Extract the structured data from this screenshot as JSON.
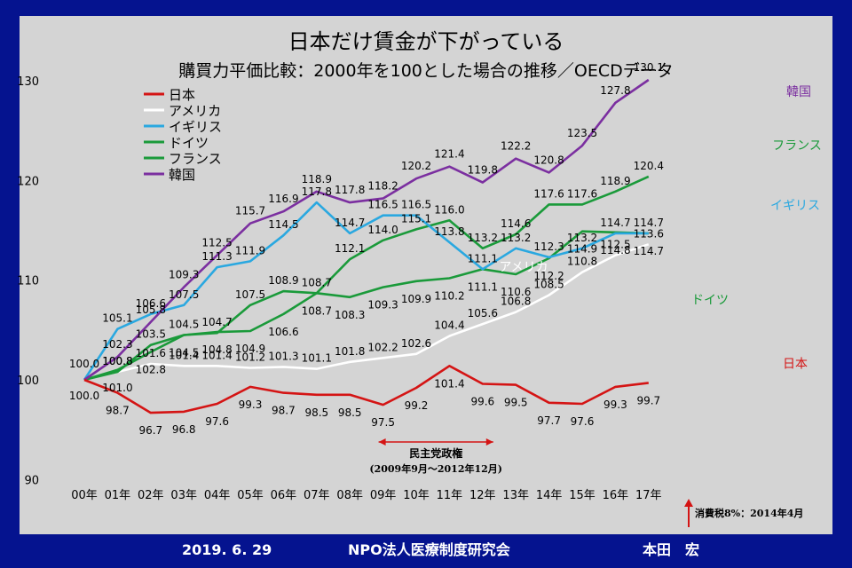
{
  "footer": {
    "date": "2019. 6. 29",
    "org": "NPO法人医療制度研究会",
    "author": "本田　宏"
  },
  "chart_data": {
    "type": "line",
    "title": "日本だけ賃金が下がっている",
    "subtitle": "購買力平価比較：2000年を100とした場合の推移／OECDデータ",
    "categories": [
      "00年",
      "01年",
      "02年",
      "03年",
      "04年",
      "05年",
      "06年",
      "07年",
      "08年",
      "09年",
      "10年",
      "11年",
      "12年",
      "13年",
      "14年",
      "15年",
      "16年",
      "17年"
    ],
    "ylim": [
      90,
      130
    ],
    "yticks": [
      90,
      100,
      110,
      120,
      130
    ],
    "grid": false,
    "legend_position": "top-left",
    "series": [
      {
        "name": "日本",
        "color": "#d41414",
        "end_label": "日本",
        "values": [
          100,
          98.7,
          96.7,
          96.8,
          97.6,
          99.3,
          98.7,
          98.5,
          98.5,
          97.5,
          99.2,
          101.4,
          99.6,
          99.5,
          97.7,
          97.6,
          99.3,
          99.7
        ],
        "labels": [
          "100.0",
          "98.7",
          "96.7",
          "96.8",
          "97.6",
          "99.3",
          "98.7",
          "98.5",
          "98.5",
          "97.5",
          "99.2",
          "101.4",
          "99.6",
          "99.5",
          "97.7",
          "97.6",
          "99.3",
          "99.7"
        ]
      },
      {
        "name": "アメリカ",
        "color": "#ffffff",
        "end_label": "アメリカ",
        "values": [
          100,
          100.8,
          101.6,
          101.4,
          101.4,
          101.2,
          101.3,
          101.1,
          101.8,
          102.2,
          102.6,
          104.4,
          105.6,
          106.8,
          108.5,
          110.8,
          112.5,
          113.6
        ],
        "labels": [
          "100.0",
          "100.8",
          "101.6",
          "101.4",
          "101.4",
          "101.2",
          "101.3",
          "101.1",
          "101.8",
          "102.2",
          "102.6",
          "104.4",
          "105.6",
          "106.8",
          "108.5",
          "110.8",
          "112.5",
          "113.6"
        ]
      },
      {
        "name": "イギリス",
        "color": "#2aa8e0",
        "end_label": "イギリス",
        "values": [
          100,
          105.1,
          106.6,
          107.5,
          111.3,
          111.9,
          114.5,
          117.8,
          114.7,
          116.5,
          116.5,
          113.8,
          111.1,
          113.2,
          112.3,
          113.2,
          114.7,
          114.7
        ],
        "labels": [
          "100.0",
          "105.1",
          "106.6",
          "107.5",
          "111.3",
          "111.9",
          "114.5",
          "117.8",
          "114.7",
          "116.5",
          "116.5",
          "113.8",
          "111.1",
          "113.2",
          "112.3",
          "113.2",
          "114.7",
          "114.7"
        ]
      },
      {
        "name": "ドイツ",
        "color": "#1a9a3a",
        "end_label": "ドイツ",
        "values": [
          100,
          101,
          102.8,
          104.5,
          104.8,
          104.9,
          106.6,
          108.7,
          108.3,
          109.3,
          109.9,
          110.2,
          111.1,
          110.6,
          112.2,
          114.9,
          114.8,
          114.7
        ],
        "labels": [
          "100.0",
          "101.0",
          "102.8",
          "104.5",
          "104.8",
          "104.9",
          "106.6",
          "108.7",
          "108.3",
          "109.3",
          "109.9",
          "110.2",
          "111.1",
          "110.6",
          "112.2",
          "114.9",
          "114.8",
          "114.7"
        ]
      },
      {
        "name": "フランス",
        "color": "#1a9a3a",
        "end_label": "フランス",
        "values": [
          100,
          100.8,
          103.5,
          104.5,
          104.7,
          107.5,
          108.9,
          108.7,
          112.1,
          114,
          115.1,
          116,
          113.2,
          114.6,
          117.6,
          117.6,
          118.9,
          120.4
        ],
        "labels": [
          "100.0",
          "100.8",
          "103.5",
          "104.5",
          "104.7",
          "107.5",
          "108.9",
          "108.7",
          "112.1",
          "114.0",
          "115.1",
          "116.0",
          "113.2",
          "114.6",
          "117.6",
          "117.6",
          "118.9",
          "120.4"
        ]
      },
      {
        "name": "韓国",
        "color": "#7b2fa0",
        "end_label": "韓国",
        "values": [
          100,
          102.3,
          105.8,
          109.3,
          112.5,
          115.7,
          116.9,
          118.9,
          117.8,
          118.2,
          120.2,
          121.4,
          119.8,
          122.2,
          120.8,
          123.5,
          127.8,
          130.1
        ],
        "labels": [
          "100.0",
          "102.3",
          "105.8",
          "109.3",
          "112.5",
          "115.7",
          "116.9",
          "118.9",
          "117.8",
          "118.2",
          "120.2",
          "121.4",
          "119.8",
          "122.2",
          "120.8",
          "123.5",
          "127.8",
          "130.1"
        ]
      }
    ],
    "annotations": {
      "government_label": "民主党政権",
      "government_period": "(2009年9月～2012年12月)",
      "tax_note": "消費税8%：2014年4月"
    }
  }
}
